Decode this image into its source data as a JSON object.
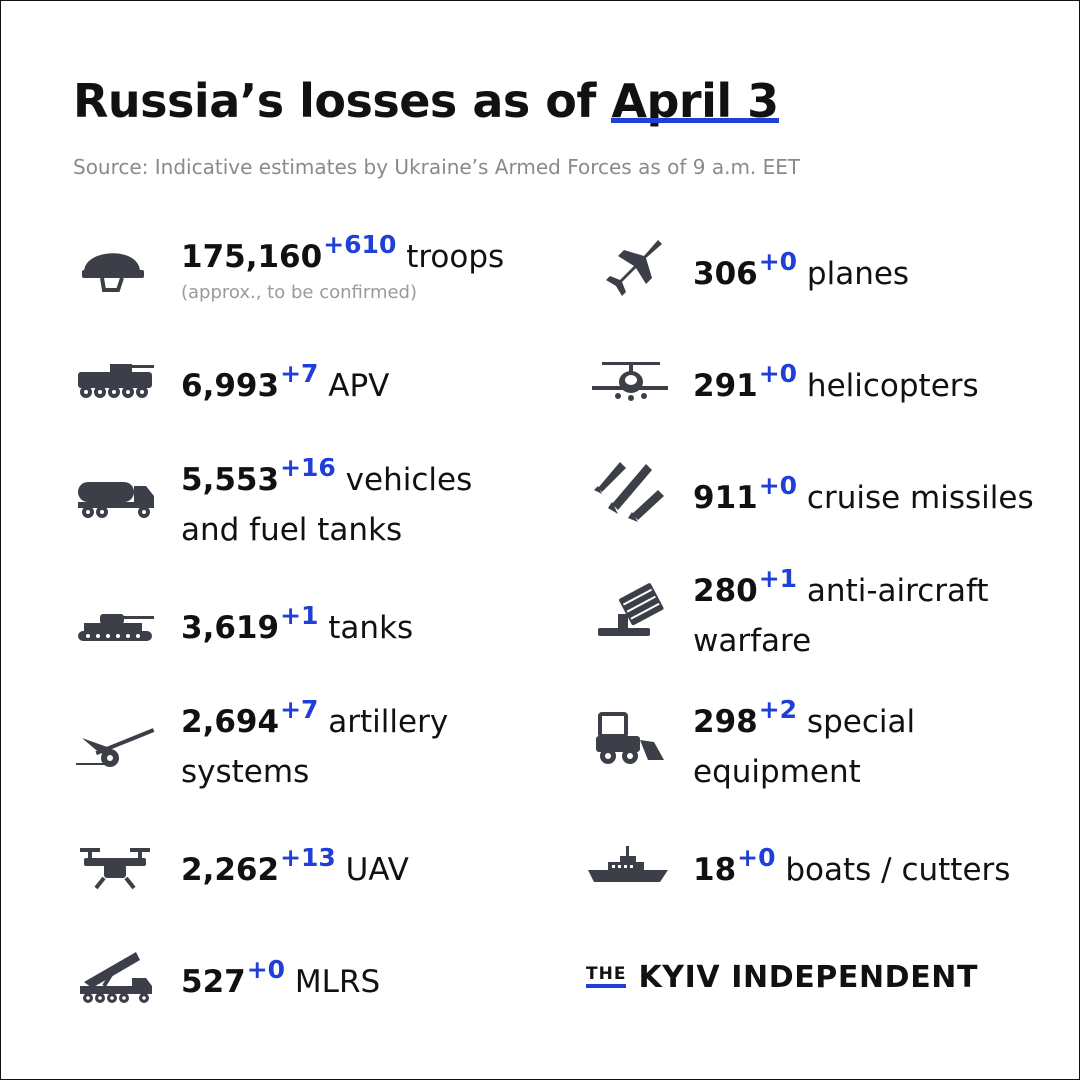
{
  "title": {
    "prefix": "Russia’s losses  as of ",
    "date": "April 3"
  },
  "source": "Source: Indicative estimates by Ukraine’s Armed Forces as of 9 a.m. EET",
  "colors": {
    "accent": "#1f3fd6",
    "text": "#111111",
    "muted": "#8a8a8a",
    "icon": "#3d3f48"
  },
  "stats": {
    "troops": {
      "icon": "helmet-icon",
      "value": "175,160",
      "delta": "+610",
      "label": "troops",
      "note": "(approx., to be confirmed)"
    },
    "apv": {
      "icon": "apv-icon",
      "value": "6,993",
      "delta": "+7",
      "label": "APV"
    },
    "vehicles": {
      "icon": "fuel-truck-icon",
      "value": "5,553",
      "delta": "+16",
      "label": "vehicles",
      "label2": "and fuel tanks"
    },
    "tanks": {
      "icon": "tank-icon",
      "value": "3,619",
      "delta": "+1",
      "label": "tanks"
    },
    "artillery": {
      "icon": "artillery-icon",
      "value": "2,694",
      "delta": "+7",
      "label": "artillery",
      "label2": "systems"
    },
    "uav": {
      "icon": "drone-icon",
      "value": "2,262",
      "delta": "+13",
      "label": "UAV"
    },
    "mlrs": {
      "icon": "mlrs-icon",
      "value": "527",
      "delta": "+0",
      "label": "MLRS"
    },
    "planes": {
      "icon": "jet-icon",
      "value": "306",
      "delta": "+0",
      "label": "planes"
    },
    "helicopters": {
      "icon": "helicopter-icon",
      "value": "291",
      "delta": "+0",
      "label": "helicopters"
    },
    "missiles": {
      "icon": "missiles-icon",
      "value": "911",
      "delta": "+0",
      "label": "cruise missiles"
    },
    "antiaircraft": {
      "icon": "anti-aircraft-icon",
      "value": "280",
      "delta": "+1",
      "label": "anti-aircraft",
      "label2": "warfare"
    },
    "special": {
      "icon": "loader-icon",
      "value": "298",
      "delta": "+2",
      "label": "special",
      "label2": "equipment"
    },
    "boats": {
      "icon": "ship-icon",
      "value": "18",
      "delta": "+0",
      "label": "boats / cutters"
    }
  },
  "brand": {
    "the": "THE",
    "name": "KYIV INDEPENDENT"
  }
}
